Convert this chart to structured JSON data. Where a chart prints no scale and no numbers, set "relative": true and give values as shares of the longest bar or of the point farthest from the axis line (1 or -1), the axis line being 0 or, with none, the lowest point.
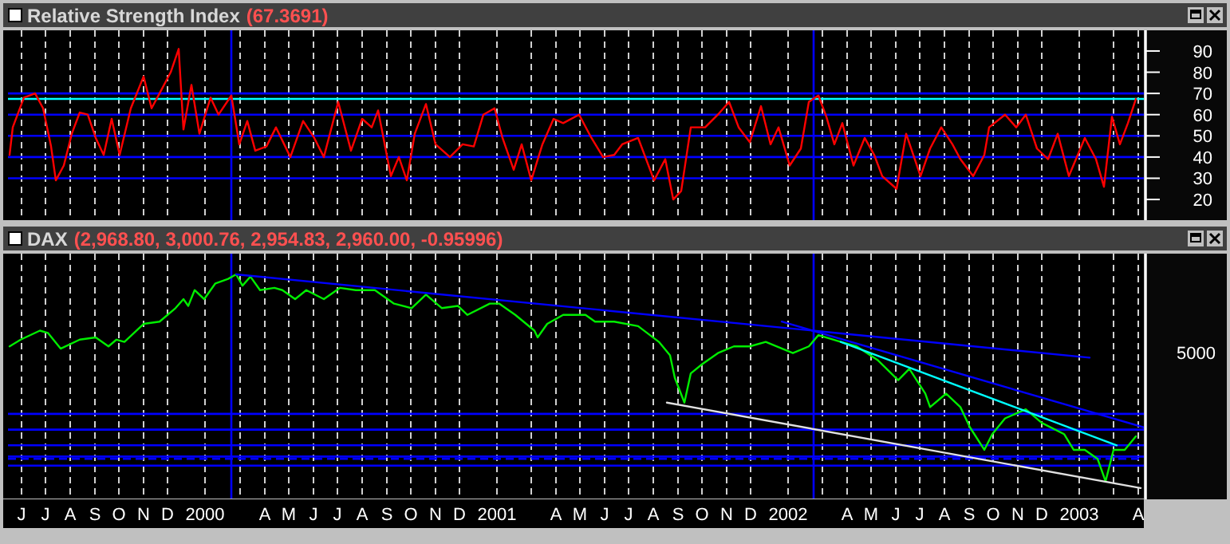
{
  "chart_data": [
    {
      "type": "line",
      "title": "Relative Strength Index",
      "subtitle": "(67.3691)",
      "xlim": [
        "1999-05-30",
        "2003-04-23"
      ],
      "ylim": [
        11,
        99
      ],
      "yticks": [
        20,
        30,
        40,
        50,
        60,
        70,
        80,
        90
      ],
      "tick_labels": "y",
      "grid": "x",
      "xticks": [
        {
          "value": "1999-06-16",
          "label": null
        },
        {
          "value": "1999-07-16",
          "label": null
        },
        {
          "value": "1999-08-16",
          "label": null
        },
        {
          "value": "1999-09-16",
          "label": null
        },
        {
          "value": "1999-10-16",
          "label": null
        },
        {
          "value": "1999-11-16",
          "label": null
        },
        {
          "value": "1999-12-16",
          "label": null
        },
        {
          "value": "2000-02-01",
          "label": null
        },
        {
          "value": "2000-03-16",
          "label": null
        },
        {
          "value": "2000-04-16",
          "label": null
        },
        {
          "value": "2000-05-16",
          "label": null
        },
        {
          "value": "2000-06-16",
          "label": null
        },
        {
          "value": "2000-07-16",
          "label": null
        },
        {
          "value": "2000-08-16",
          "label": null
        },
        {
          "value": "2000-09-16",
          "label": null
        },
        {
          "value": "2000-10-16",
          "label": null
        },
        {
          "value": "2000-11-16",
          "label": null
        },
        {
          "value": "2000-12-16",
          "label": null
        },
        {
          "value": "2001-02-01",
          "label": null
        },
        {
          "value": "2001-03-16",
          "label": null
        },
        {
          "value": "2001-04-16",
          "label": null
        },
        {
          "value": "2001-05-16",
          "label": null
        },
        {
          "value": "2001-06-16",
          "label": null
        },
        {
          "value": "2001-07-16",
          "label": null
        },
        {
          "value": "2001-08-16",
          "label": null
        },
        {
          "value": "2001-09-16",
          "label": null
        },
        {
          "value": "2001-10-16",
          "label": null
        },
        {
          "value": "2001-11-16",
          "label": null
        },
        {
          "value": "2001-12-16",
          "label": null
        },
        {
          "value": "2002-02-01",
          "label": null
        },
        {
          "value": "2002-03-16",
          "label": null
        },
        {
          "value": "2002-04-16",
          "label": null
        },
        {
          "value": "2002-05-16",
          "label": null
        },
        {
          "value": "2002-06-16",
          "label": null
        },
        {
          "value": "2002-07-16",
          "label": null
        },
        {
          "value": "2002-08-16",
          "label": null
        },
        {
          "value": "2002-09-16",
          "label": null
        },
        {
          "value": "2002-10-16",
          "label": null
        },
        {
          "value": "2002-11-16",
          "label": null
        },
        {
          "value": "2002-12-16",
          "label": null
        },
        {
          "value": "2003-02-01",
          "label": null
        },
        {
          "value": "2003-03-16",
          "label": null
        },
        {
          "value": "2003-04-16",
          "label": null
        }
      ],
      "ref_lines": [
        {
          "axis": "y",
          "value": 70,
          "color": "#0000ff"
        },
        {
          "axis": "y",
          "value": 67.4,
          "color": "#00ffff"
        },
        {
          "axis": "y",
          "value": 60,
          "color": "#0000ff"
        },
        {
          "axis": "y",
          "value": 50,
          "color": "#0000ff"
        },
        {
          "axis": "y",
          "value": 40,
          "color": "#0000ff"
        },
        {
          "axis": "y",
          "value": 30,
          "color": "#0000ff"
        },
        {
          "axis": "x",
          "value": "2000-03-05",
          "color": "#0000ff"
        },
        {
          "axis": "x",
          "value": "2002-03-05",
          "color": "#0000ff"
        }
      ],
      "series": [
        {
          "color": "#ff0000",
          "x": [
            "1999-06-01",
            "1999-06-05",
            "1999-06-19",
            "1999-07-03",
            "1999-07-13",
            "1999-07-23",
            "1999-07-29",
            "1999-08-08",
            "1999-08-18",
            "1999-08-28",
            "1999-09-07",
            "1999-09-17",
            "1999-09-27",
            "1999-10-07",
            "1999-10-17",
            "1999-10-31",
            "1999-11-16",
            "1999-11-26",
            "1999-12-06",
            "1999-12-20",
            "1999-12-30",
            "2000-01-05",
            "2000-01-15",
            "2000-01-25",
            "2000-02-08",
            "2000-02-18",
            "2000-03-05",
            "2000-03-15",
            "2000-03-25",
            "2000-04-04",
            "2000-04-18",
            "2000-04-30",
            "2000-05-18",
            "2000-06-03",
            "2000-06-17",
            "2000-06-29",
            "2000-07-17",
            "2000-08-02",
            "2000-08-16",
            "2000-08-28",
            "2000-09-05",
            "2000-09-21",
            "2000-10-01",
            "2000-10-11",
            "2000-10-21",
            "2000-11-04",
            "2000-11-16",
            "2000-12-04",
            "2000-12-20",
            "2001-01-03",
            "2001-01-15",
            "2001-01-29",
            "2001-02-08",
            "2001-02-22",
            "2001-03-04",
            "2001-03-16",
            "2001-03-30",
            "2001-04-13",
            "2001-04-25",
            "2001-05-15",
            "2001-05-29",
            "2001-06-14",
            "2001-06-28",
            "2001-07-08",
            "2001-07-28",
            "2001-08-17",
            "2001-08-31",
            "2001-09-10",
            "2001-09-20",
            "2001-10-02",
            "2001-10-20",
            "2001-11-05",
            "2001-11-19",
            "2001-12-01",
            "2001-12-15",
            "2001-12-29",
            "2002-01-10",
            "2002-01-20",
            "2002-02-03",
            "2002-02-17",
            "2002-02-27",
            "2002-03-11",
            "2002-03-21",
            "2002-03-31",
            "2002-04-10",
            "2002-04-24",
            "2002-05-08",
            "2002-05-20",
            "2002-05-30",
            "2002-06-17",
            "2002-06-29",
            "2002-07-17",
            "2002-07-29",
            "2002-08-12",
            "2002-08-26",
            "2002-09-05",
            "2002-09-21",
            "2002-10-05",
            "2002-10-11",
            "2002-10-31",
            "2002-11-14",
            "2002-11-26",
            "2002-12-10",
            "2002-12-24",
            "2003-01-05",
            "2003-01-19",
            "2003-02-08",
            "2003-02-22",
            "2003-03-04",
            "2003-03-14",
            "2003-03-24",
            "2003-04-03",
            "2003-04-13"
          ],
          "values": [
            41,
            54,
            68,
            70,
            63,
            45,
            29,
            36,
            51,
            61,
            60,
            49,
            41,
            58,
            41,
            63,
            78,
            63,
            70,
            80,
            91,
            53,
            74,
            51,
            68,
            60,
            69,
            46,
            57,
            43,
            45,
            54,
            40,
            57,
            49,
            40,
            66,
            43,
            58,
            54,
            62,
            31,
            40,
            29,
            51,
            65,
            46,
            40,
            46,
            45,
            60,
            63,
            49,
            34,
            46,
            29,
            46,
            58,
            56,
            60,
            50,
            40,
            41,
            46,
            49,
            29,
            39,
            20,
            24,
            54,
            54,
            60,
            66,
            54,
            47,
            64,
            46,
            54,
            36,
            44,
            66,
            69,
            59,
            46,
            56,
            36,
            49,
            41,
            31,
            25,
            51,
            31,
            44,
            54,
            46,
            39,
            31,
            41,
            54,
            60,
            54,
            60,
            44,
            39,
            51,
            31,
            49,
            39,
            26,
            59,
            46,
            56,
            67.4
          ]
        }
      ]
    },
    {
      "type": "line",
      "title": "DAX",
      "subtitle": "(2,968.80, 3,000.76, 2,954.83, 2,960.00, -0.95996)",
      "relative": true,
      "xlim": [
        "1999-05-30",
        "2003-04-23"
      ],
      "tick_labels": "x",
      "grid": "x",
      "xticks": [
        {
          "value": "1999-06-16",
          "label": "J"
        },
        {
          "value": "1999-07-16",
          "label": "J"
        },
        {
          "value": "1999-08-16",
          "label": "A"
        },
        {
          "value": "1999-09-16",
          "label": "S"
        },
        {
          "value": "1999-10-16",
          "label": "O"
        },
        {
          "value": "1999-11-16",
          "label": "N"
        },
        {
          "value": "1999-12-16",
          "label": "D"
        },
        {
          "value": "2000-02-01",
          "label": "2000"
        },
        {
          "value": "2000-03-16",
          "label": null
        },
        {
          "value": "2000-04-16",
          "label": "A"
        },
        {
          "value": "2000-05-16",
          "label": "M"
        },
        {
          "value": "2000-06-16",
          "label": "J"
        },
        {
          "value": "2000-07-16",
          "label": "J"
        },
        {
          "value": "2000-08-16",
          "label": "A"
        },
        {
          "value": "2000-09-16",
          "label": "S"
        },
        {
          "value": "2000-10-16",
          "label": "O"
        },
        {
          "value": "2000-11-16",
          "label": "N"
        },
        {
          "value": "2000-12-16",
          "label": "D"
        },
        {
          "value": "2001-02-01",
          "label": "2001"
        },
        {
          "value": "2001-03-16",
          "label": null
        },
        {
          "value": "2001-04-16",
          "label": "A"
        },
        {
          "value": "2001-05-16",
          "label": "M"
        },
        {
          "value": "2001-06-16",
          "label": "J"
        },
        {
          "value": "2001-07-16",
          "label": "J"
        },
        {
          "value": "2001-08-16",
          "label": "A"
        },
        {
          "value": "2001-09-16",
          "label": "S"
        },
        {
          "value": "2001-10-16",
          "label": "O"
        },
        {
          "value": "2001-11-16",
          "label": "N"
        },
        {
          "value": "2001-12-16",
          "label": "D"
        },
        {
          "value": "2002-02-01",
          "label": "2002"
        },
        {
          "value": "2002-03-16",
          "label": null
        },
        {
          "value": "2002-04-16",
          "label": "A"
        },
        {
          "value": "2002-05-16",
          "label": "M"
        },
        {
          "value": "2002-06-16",
          "label": "J"
        },
        {
          "value": "2002-07-16",
          "label": "J"
        },
        {
          "value": "2002-08-16",
          "label": "A"
        },
        {
          "value": "2002-09-16",
          "label": "S"
        },
        {
          "value": "2002-10-16",
          "label": "O"
        },
        {
          "value": "2002-11-16",
          "label": "N"
        },
        {
          "value": "2002-12-16",
          "label": "D"
        },
        {
          "value": "2003-02-01",
          "label": "2003"
        },
        {
          "value": "2003-03-16",
          "label": null
        },
        {
          "value": "2003-04-16",
          "label": "A"
        }
      ],
      "annotations": [
        "5000"
      ],
      "ref_lines": [
        {
          "axis": "y",
          "value": 0.38,
          "color": "#0000ff"
        },
        {
          "axis": "y",
          "value": 0.31,
          "color": "#0000ff"
        },
        {
          "axis": "y",
          "value": 0.24,
          "color": "#0000ff"
        },
        {
          "axis": "y",
          "value": 0.19,
          "color": "#0000ff"
        },
        {
          "axis": "y",
          "value": 0.18,
          "color": "#0000ff",
          "line_style": "dashed"
        },
        {
          "axis": "y",
          "value": 0.15,
          "color": "#0000ff"
        },
        {
          "axis": "x",
          "value": "2000-03-05",
          "color": "#0000ff"
        },
        {
          "axis": "x",
          "value": "2002-03-05",
          "color": "#0000ff"
        }
      ],
      "series": [
        {
          "color": "#00ee00",
          "x": [
            "1999-06-01",
            "1999-06-15",
            "1999-07-09",
            "1999-07-19",
            "1999-08-04",
            "1999-08-28",
            "1999-09-17",
            "1999-10-03",
            "1999-10-13",
            "1999-10-23",
            "1999-11-16",
            "1999-12-06",
            "1999-12-26",
            "2000-01-05",
            "2000-01-11",
            "2000-01-19",
            "2000-01-31",
            "2000-02-14",
            "2000-03-01",
            "2000-03-11",
            "2000-03-19",
            "2000-03-29",
            "2000-04-10",
            "2000-04-28",
            "2000-05-08",
            "2000-05-24",
            "2000-06-07",
            "2000-06-29",
            "2000-07-19",
            "2000-08-08",
            "2000-09-01",
            "2000-09-25",
            "2000-10-17",
            "2000-11-04",
            "2000-11-24",
            "2000-12-14",
            "2000-12-26",
            "2001-01-23",
            "2001-02-04",
            "2001-02-24",
            "2001-03-20",
            "2001-03-24",
            "2001-04-05",
            "2001-04-25",
            "2001-05-23",
            "2001-06-04",
            "2001-06-28",
            "2001-07-28",
            "2001-08-23",
            "2001-09-06",
            "2001-09-12",
            "2001-09-24",
            "2001-10-02",
            "2001-10-16",
            "2001-11-05",
            "2001-11-25",
            "2001-12-15",
            "2002-01-04",
            "2002-02-07",
            "2002-02-27",
            "2002-03-11",
            "2002-04-08",
            "2002-04-28",
            "2002-05-24",
            "2002-06-19",
            "2002-07-03",
            "2002-07-23",
            "2002-07-29",
            "2002-08-18",
            "2002-09-05",
            "2002-09-17",
            "2002-10-05",
            "2002-10-15",
            "2002-10-31",
            "2002-11-26",
            "2002-12-16",
            "2003-01-13",
            "2003-01-25",
            "2003-02-08",
            "2003-02-24",
            "2003-03-06",
            "2003-03-16",
            "2003-03-30",
            "2003-04-13"
          ],
          "values": [
            0.68,
            0.71,
            0.75,
            0.74,
            0.67,
            0.71,
            0.72,
            0.68,
            0.71,
            0.7,
            0.78,
            0.79,
            0.85,
            0.89,
            0.86,
            0.93,
            0.89,
            0.96,
            0.98,
            1.0,
            0.95,
            0.99,
            0.93,
            0.94,
            0.93,
            0.89,
            0.93,
            0.89,
            0.94,
            0.93,
            0.93,
            0.87,
            0.85,
            0.91,
            0.85,
            0.86,
            0.82,
            0.87,
            0.87,
            0.82,
            0.75,
            0.72,
            0.78,
            0.82,
            0.82,
            0.79,
            0.79,
            0.77,
            0.7,
            0.64,
            0.54,
            0.43,
            0.56,
            0.6,
            0.65,
            0.68,
            0.68,
            0.7,
            0.65,
            0.68,
            0.73,
            0.7,
            0.68,
            0.62,
            0.53,
            0.58,
            0.47,
            0.41,
            0.47,
            0.41,
            0.32,
            0.22,
            0.29,
            0.36,
            0.4,
            0.34,
            0.29,
            0.22,
            0.22,
            0.18,
            0.08,
            0.22,
            0.22,
            0.28
          ]
        },
        {
          "type": "line",
          "color": "#0000ff",
          "x": [
            "2000-03-11",
            "2003-02-14"
          ],
          "values": [
            1.0,
            0.63
          ]
        },
        {
          "type": "line",
          "color": "#0000ff",
          "x": [
            "2002-01-24",
            "2003-04-23"
          ],
          "values": [
            0.79,
            0.32
          ]
        },
        {
          "type": "line",
          "color": "#00ffff",
          "x": [
            "2002-04-08",
            "2003-03-20"
          ],
          "values": [
            0.7,
            0.24
          ]
        },
        {
          "type": "line",
          "color": "#e0e0e0",
          "x": [
            "2001-09-02",
            "2003-04-19"
          ],
          "values": [
            0.43,
            0.05
          ]
        }
      ]
    }
  ]
}
